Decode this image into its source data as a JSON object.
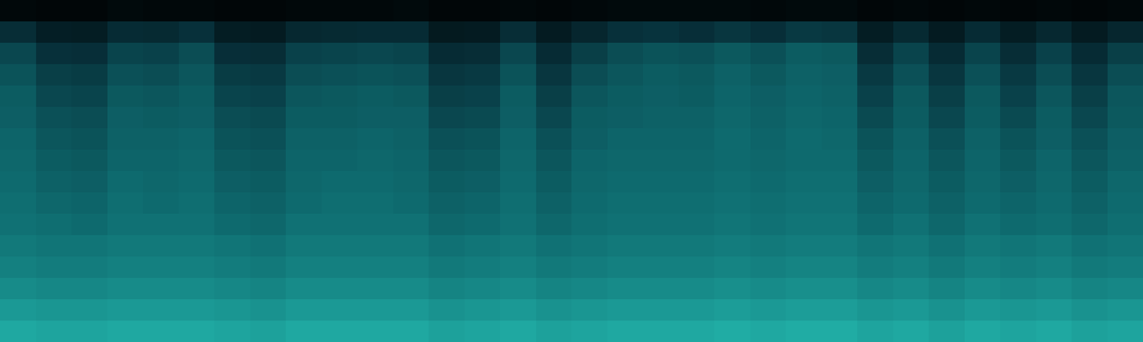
{
  "chart_data": {
    "type": "heatmap",
    "tick_labels": false,
    "zlim": [
      0,
      100
    ],
    "cells": [
      [
        5,
        4,
        4,
        6,
        5,
        5,
        4,
        4,
        5,
        5,
        5,
        6,
        4,
        4,
        5,
        4,
        5,
        6,
        6,
        6,
        6,
        5,
        6,
        6,
        4,
        5,
        4,
        5,
        4,
        5,
        4,
        5
      ],
      [
        28,
        19,
        18,
        27,
        26,
        30,
        18,
        17,
        25,
        26,
        27,
        27,
        16,
        17,
        28,
        17,
        24,
        30,
        31,
        29,
        32,
        29,
        33,
        32,
        18,
        26,
        17,
        27,
        18,
        25,
        17,
        24
      ],
      [
        38,
        30,
        29,
        37,
        36,
        40,
        29,
        28,
        36,
        37,
        38,
        37,
        27,
        28,
        38,
        27,
        35,
        40,
        42,
        41,
        44,
        41,
        45,
        44,
        28,
        37,
        27,
        37,
        28,
        36,
        27,
        35
      ],
      [
        42,
        35,
        34,
        41,
        40,
        43,
        34,
        33,
        40,
        41,
        42,
        41,
        32,
        33,
        42,
        32,
        40,
        43,
        45,
        44,
        47,
        44,
        47,
        46,
        33,
        41,
        32,
        41,
        33,
        40,
        32,
        40
      ],
      [
        45,
        38,
        37,
        44,
        43,
        45,
        37,
        36,
        43,
        44,
        45,
        44,
        35,
        36,
        45,
        35,
        43,
        45,
        46,
        45,
        48,
        46,
        48,
        47,
        36,
        44,
        35,
        44,
        36,
        43,
        35,
        43
      ],
      [
        46,
        41,
        40,
        46,
        45,
        46,
        40,
        39,
        45,
        45,
        46,
        46,
        38,
        39,
        46,
        38,
        45,
        46,
        47,
        47,
        49,
        47,
        49,
        48,
        39,
        45,
        38,
        45,
        39,
        45,
        38,
        44
      ],
      [
        48,
        43,
        42,
        47,
        47,
        48,
        42,
        41,
        47,
        47,
        48,
        47,
        41,
        42,
        48,
        41,
        46,
        48,
        48,
        48,
        50,
        48,
        50,
        49,
        42,
        47,
        41,
        47,
        42,
        46,
        41,
        46
      ],
      [
        49,
        45,
        44,
        48,
        48,
        49,
        44,
        43,
        48,
        48,
        49,
        48,
        43,
        44,
        49,
        43,
        48,
        49,
        49,
        49,
        50,
        49,
        50,
        50,
        44,
        48,
        43,
        48,
        44,
        48,
        43,
        47
      ],
      [
        50,
        47,
        46,
        50,
        49,
        50,
        46,
        45,
        49,
        50,
        50,
        49,
        45,
        46,
        50,
        45,
        49,
        50,
        50,
        50,
        51,
        50,
        51,
        51,
        46,
        49,
        45,
        49,
        46,
        49,
        45,
        49
      ],
      [
        51,
        49,
        48,
        51,
        50,
        51,
        48,
        47,
        50,
        51,
        51,
        50,
        47,
        48,
        51,
        47,
        50,
        51,
        51,
        51,
        52,
        51,
        52,
        52,
        48,
        50,
        47,
        50,
        48,
        50,
        47,
        50
      ],
      [
        52,
        51,
        50,
        52,
        52,
        52,
        50,
        49,
        52,
        52,
        52,
        52,
        49,
        50,
        52,
        49,
        51,
        52,
        52,
        52,
        53,
        52,
        53,
        53,
        50,
        52,
        49,
        52,
        50,
        51,
        49,
        51
      ],
      [
        54,
        53,
        53,
        54,
        54,
        54,
        53,
        52,
        54,
        54,
        54,
        54,
        52,
        53,
        54,
        52,
        53,
        54,
        54,
        54,
        55,
        54,
        55,
        55,
        53,
        54,
        52,
        54,
        53,
        54,
        52,
        53
      ],
      [
        56,
        55,
        55,
        56,
        56,
        56,
        55,
        54,
        56,
        56,
        56,
        56,
        54,
        55,
        56,
        54,
        55,
        56,
        56,
        56,
        57,
        56,
        57,
        57,
        55,
        56,
        54,
        56,
        55,
        56,
        54,
        55
      ],
      [
        59,
        58,
        58,
        59,
        59,
        59,
        58,
        57,
        59,
        59,
        59,
        59,
        57,
        58,
        59,
        57,
        58,
        59,
        59,
        59,
        60,
        59,
        60,
        60,
        58,
        59,
        57,
        59,
        58,
        59,
        57,
        58
      ],
      [
        63,
        62,
        62,
        63,
        63,
        63,
        62,
        61,
        63,
        63,
        63,
        63,
        61,
        62,
        63,
        61,
        62,
        63,
        63,
        63,
        64,
        63,
        64,
        64,
        62,
        63,
        61,
        63,
        62,
        63,
        61,
        62
      ],
      [
        67,
        66,
        66,
        67,
        67,
        67,
        66,
        65,
        67,
        67,
        67,
        67,
        65,
        66,
        67,
        65,
        66,
        67,
        67,
        67,
        68,
        67,
        68,
        68,
        66,
        67,
        65,
        67,
        66,
        67,
        65,
        66
      ]
    ]
  }
}
